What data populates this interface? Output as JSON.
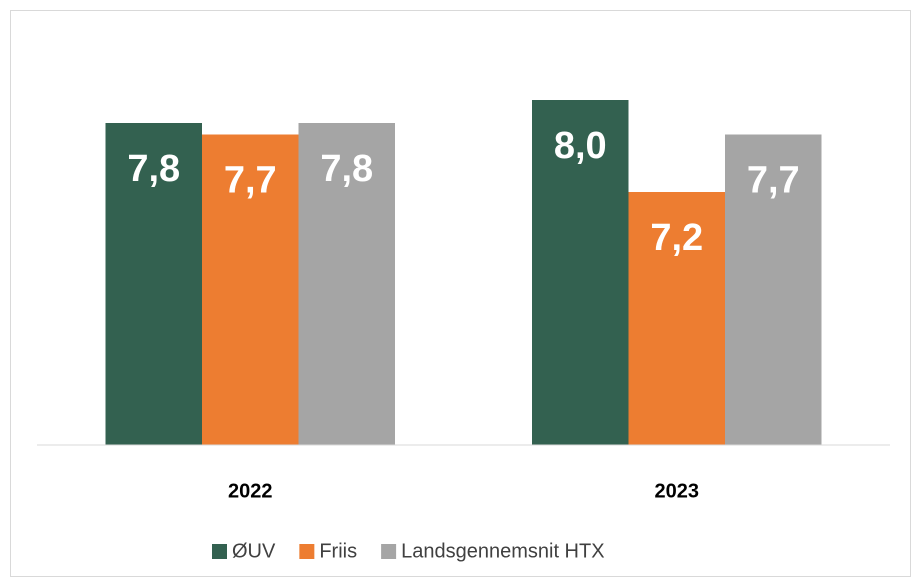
{
  "chart_data": {
    "type": "bar",
    "categories": [
      "2022",
      "2023"
    ],
    "series": [
      {
        "name": "ØUV",
        "color": "#336150",
        "values": [
          7.8,
          8.0
        ],
        "value_labels": [
          "7,8",
          "8,0"
        ]
      },
      {
        "name": "Friis",
        "color": "#ED7D31",
        "values": [
          7.7,
          7.2
        ],
        "value_labels": [
          "7,7",
          "7,2"
        ]
      },
      {
        "name": "Landsgennemsnit HTX",
        "color": "#A5A5A5",
        "values": [
          7.8,
          7.7
        ],
        "value_labels": [
          "7,8",
          "7,7"
        ]
      }
    ],
    "ylim": [
      5,
      8.2
    ],
    "legend": "bottom"
  }
}
